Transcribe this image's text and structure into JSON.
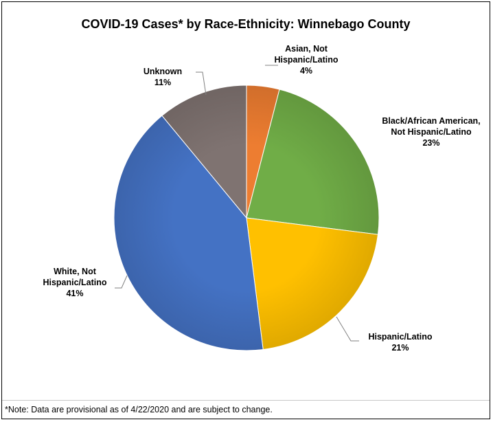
{
  "chart_data": {
    "type": "pie",
    "title": "COVID-19 Cases* by Race-Ethnicity: Winnebago County",
    "slices": [
      {
        "label_lines": [
          "Asian, Not",
          "Hispanic/Latino"
        ],
        "value": 4,
        "value_label": "4%",
        "color": "#ED7D31"
      },
      {
        "label_lines": [
          "Black/African American,",
          "Not Hispanic/Latino"
        ],
        "value": 23,
        "value_label": "23%",
        "color": "#70AD47"
      },
      {
        "label_lines": [
          "Hispanic/Latino"
        ],
        "value": 21,
        "value_label": "21%",
        "color": "#FFC000"
      },
      {
        "label_lines": [
          "White, Not",
          "Hispanic/Latino"
        ],
        "value": 41,
        "value_label": "41%",
        "color": "#4472C4"
      },
      {
        "label_lines": [
          "Unknown"
        ],
        "value": 11,
        "value_label": "11%",
        "color": "#7F7371"
      }
    ],
    "legend": "none"
  },
  "footer": {
    "note": "*Note: Data are provisional as of 4/22/2020 and are subject to change."
  }
}
